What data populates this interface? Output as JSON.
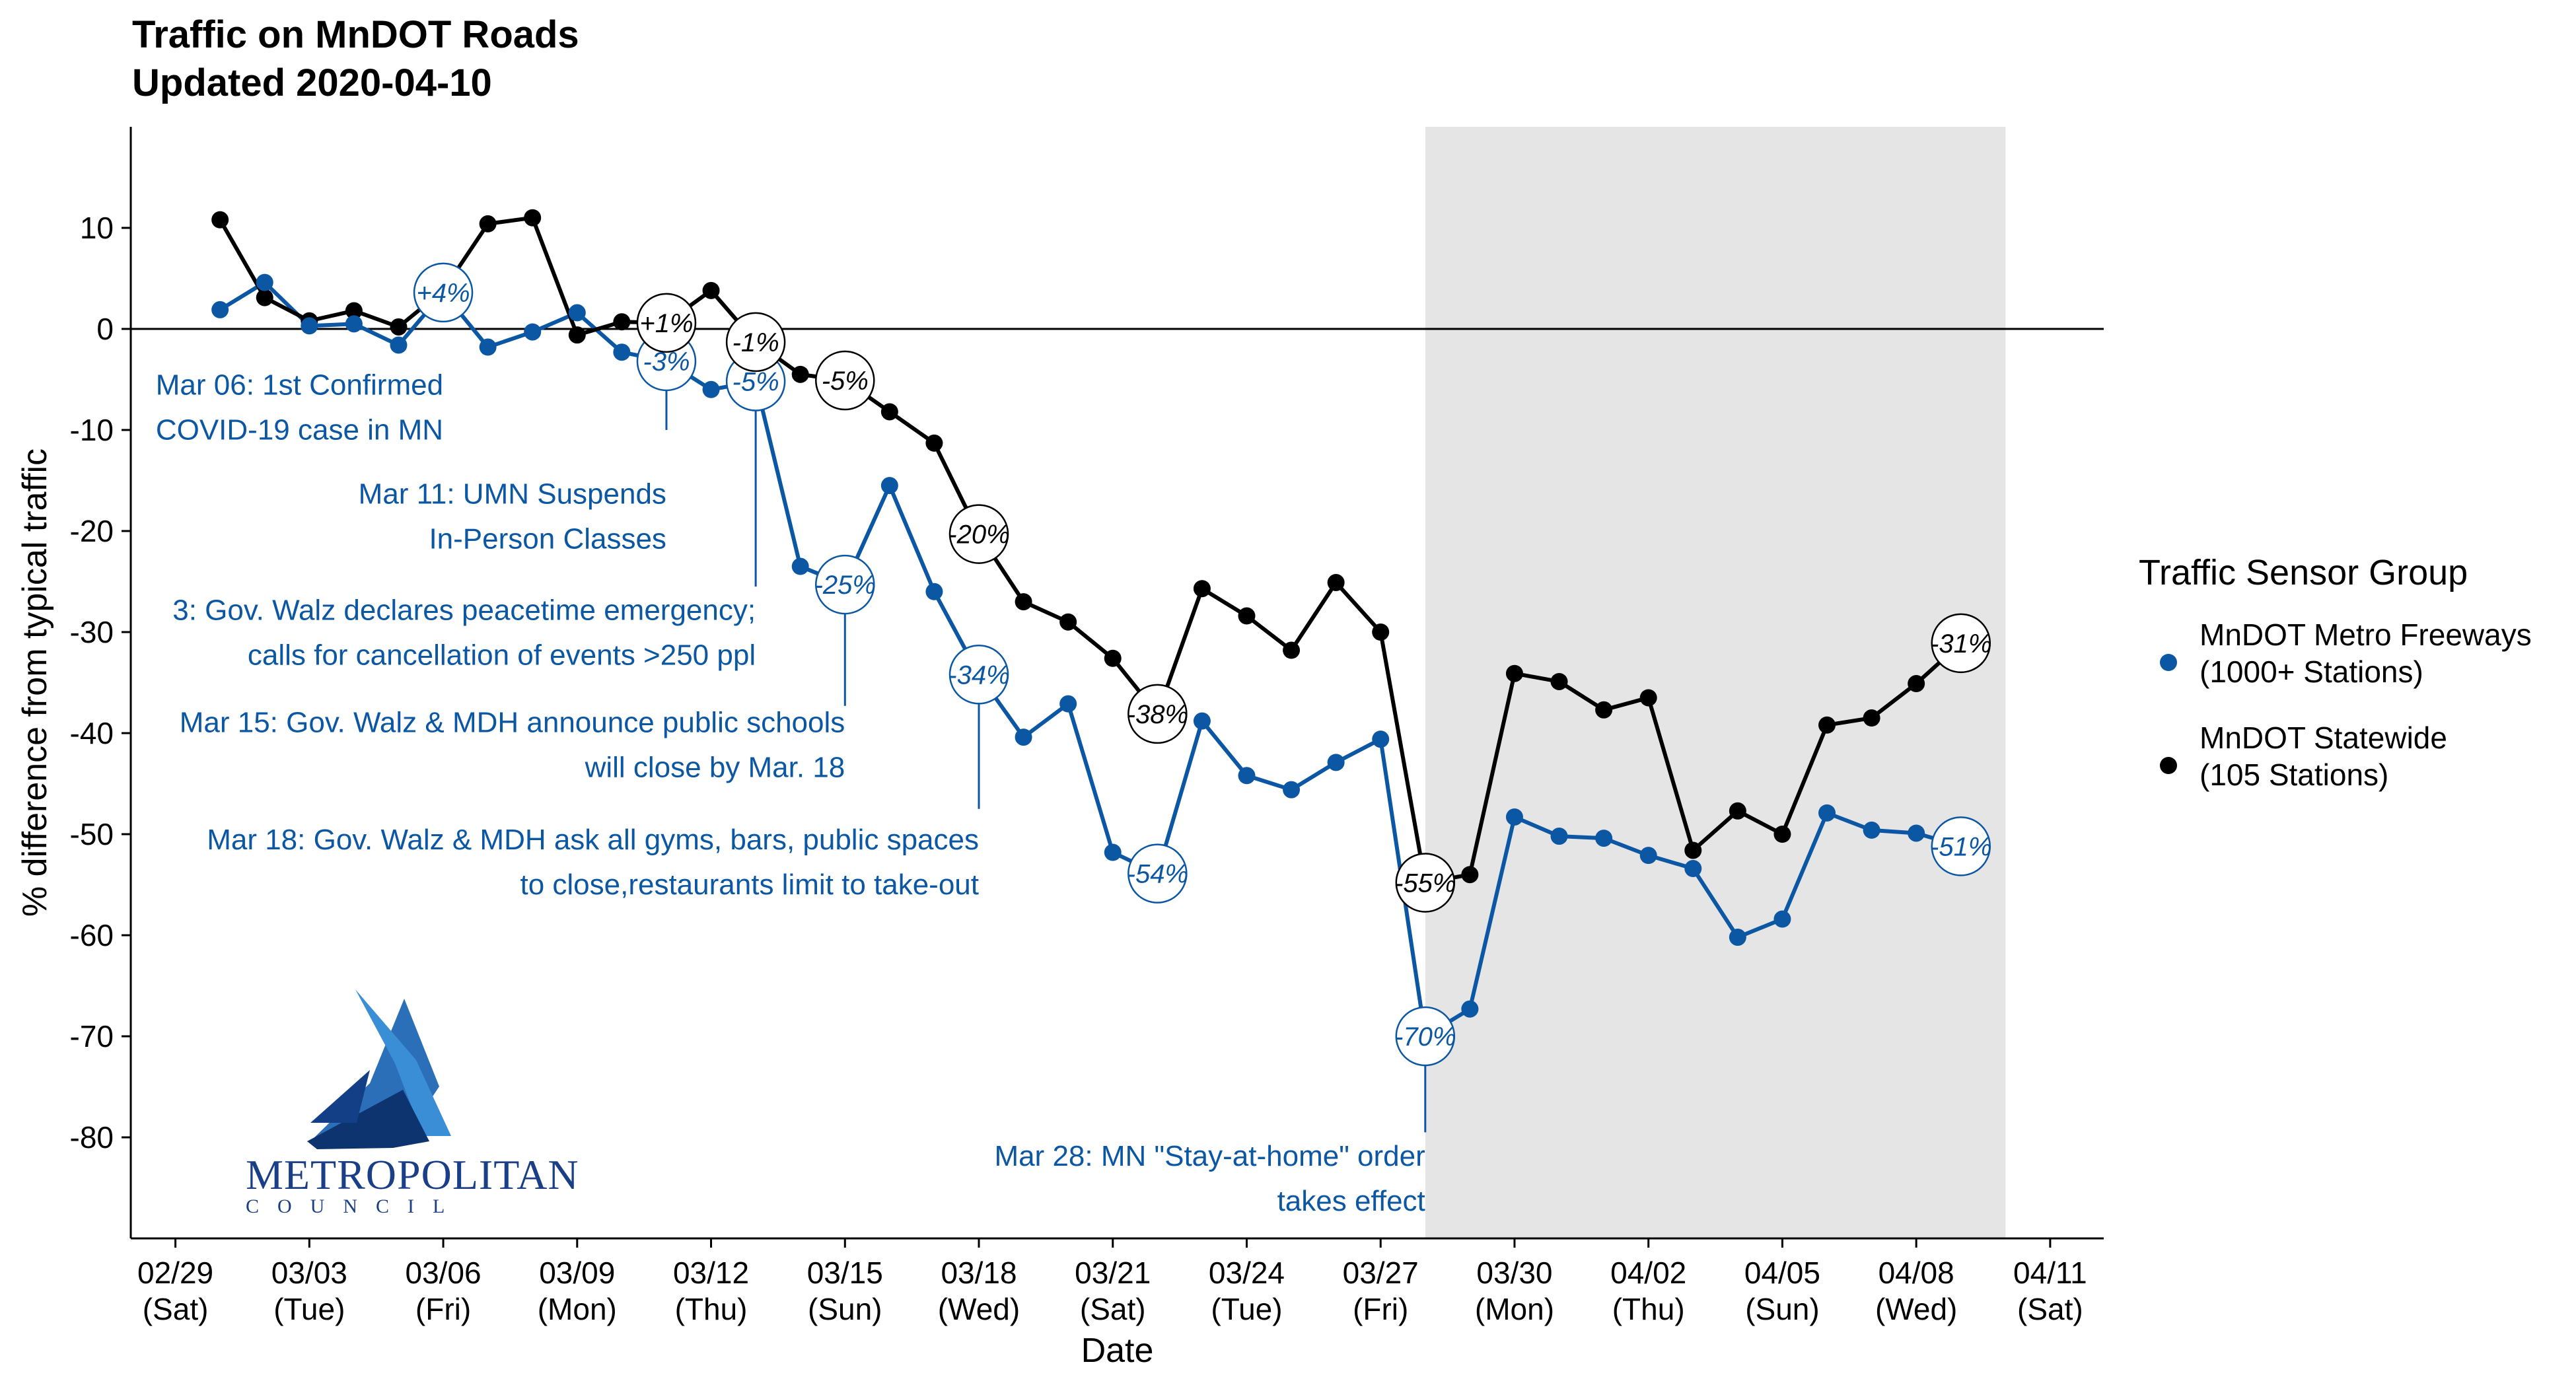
{
  "chart_data": {
    "type": "line",
    "title": [
      "Traffic on MnDOT Roads",
      "Updated 2020-04-10"
    ],
    "xlabel": "Date",
    "ylabel": "% difference from typical traffic",
    "x_start": "2020-03-01",
    "x_ticks": [
      {
        "line1": "02/29",
        "line2": "(Sat)",
        "day": -1
      },
      {
        "line1": "03/03",
        "line2": "(Tue)",
        "day": 2
      },
      {
        "line1": "03/06",
        "line2": "(Fri)",
        "day": 5
      },
      {
        "line1": "03/09",
        "line2": "(Mon)",
        "day": 8
      },
      {
        "line1": "03/12",
        "line2": "(Thu)",
        "day": 11
      },
      {
        "line1": "03/15",
        "line2": "(Sun)",
        "day": 14
      },
      {
        "line1": "03/18",
        "line2": "(Wed)",
        "day": 17
      },
      {
        "line1": "03/21",
        "line2": "(Sat)",
        "day": 20
      },
      {
        "line1": "03/24",
        "line2": "(Tue)",
        "day": 23
      },
      {
        "line1": "03/27",
        "line2": "(Fri)",
        "day": 26
      },
      {
        "line1": "03/30",
        "line2": "(Mon)",
        "day": 29
      },
      {
        "line1": "04/02",
        "line2": "(Thu)",
        "day": 32
      },
      {
        "line1": "04/05",
        "line2": "(Sun)",
        "day": 35
      },
      {
        "line1": "04/08",
        "line2": "(Wed)",
        "day": 38
      },
      {
        "line1": "04/11",
        "line2": "(Sat)",
        "day": 41
      }
    ],
    "xlim": [
      -2,
      42.2
    ],
    "ylim": [
      -90,
      20
    ],
    "y_ticks": [
      10,
      0,
      -10,
      -20,
      -30,
      -40,
      -50,
      -60,
      -70,
      -80
    ],
    "shaded_region": [
      27,
      40
    ],
    "series": [
      {
        "name": "MnDOT Metro Freeways",
        "name_line2": "(1000+ Stations)",
        "color": "#0b57a4",
        "values": [
          1.9,
          4.6,
          0.3,
          0.5,
          -1.6,
          3.6,
          -1.8,
          -0.3,
          1.6,
          -2.3,
          -3.2,
          -6.0,
          -5.2,
          -23.5,
          -25.3,
          -15.5,
          -26.0,
          -34.2,
          -40.4,
          -37.1,
          -51.8,
          -53.9,
          -38.8,
          -44.2,
          -45.6,
          -42.9,
          -40.6,
          -70.0,
          -67.3,
          -48.3,
          -50.2,
          -50.4,
          -52.1,
          -53.4,
          -60.2,
          -58.4,
          -47.9,
          -49.6,
          -49.9,
          -51.2
        ]
      },
      {
        "name": "MnDOT Statewide",
        "name_line2": "(105 Stations)",
        "color": "#000000",
        "values": [
          10.8,
          3.1,
          0.8,
          1.8,
          0.2,
          3.8,
          10.4,
          11.0,
          -0.6,
          0.7,
          0.6,
          3.8,
          -1.3,
          -4.5,
          -5.1,
          -8.2,
          -11.3,
          -20.3,
          -27.0,
          -29.0,
          -32.6,
          -38.1,
          -25.7,
          -28.4,
          -31.8,
          -25.1,
          -30.0,
          -54.8,
          -54.0,
          -34.1,
          -34.9,
          -37.7,
          -36.5,
          -51.6,
          -47.7,
          -50.0,
          -39.2,
          -38.5,
          -35.1,
          -31.1
        ]
      }
    ],
    "bubbles": [
      {
        "text": "+4%",
        "day": 5,
        "value": 3.6,
        "series": 0
      },
      {
        "text": "-3%",
        "day": 10,
        "value": -3.2,
        "series": 0
      },
      {
        "text": "-5%",
        "day": 12,
        "value": -5.2,
        "series": 0
      },
      {
        "text": "-25%",
        "day": 14,
        "value": -25.3,
        "series": 0
      },
      {
        "text": "-34%",
        "day": 17,
        "value": -34.2,
        "series": 0
      },
      {
        "text": "-54%",
        "day": 21,
        "value": -53.9,
        "series": 0
      },
      {
        "text": "-70%",
        "day": 27,
        "value": -70.0,
        "series": 0
      },
      {
        "text": "-51%",
        "day": 39,
        "value": -51.2,
        "series": 0
      },
      {
        "text": "+1%",
        "day": 10,
        "value": 0.6,
        "series": 1
      },
      {
        "text": "-1%",
        "day": 12,
        "value": -1.3,
        "series": 1
      },
      {
        "text": "-5%",
        "day": 14,
        "value": -5.1,
        "series": 1
      },
      {
        "text": "-20%",
        "day": 17,
        "value": -20.3,
        "series": 1
      },
      {
        "text": "-38%",
        "day": 21,
        "value": -38.1,
        "series": 1
      },
      {
        "text": "-55%",
        "day": 27,
        "value": -54.8,
        "series": 1
      },
      {
        "text": "-31%",
        "day": 39,
        "value": -31.1,
        "series": 1
      }
    ],
    "annotations": [
      {
        "day": 5,
        "value": 3.6,
        "lines": [
          "Mar 06: 1st Confirmed",
          "COVID-19 case in MN"
        ]
      },
      {
        "day": 10,
        "value": -3.2,
        "lines": [
          "Mar 11: UMN Suspends",
          "In-Person Classes"
        ]
      },
      {
        "day": 12,
        "value": -5.2,
        "lines": [
          "3: Gov. Walz declares peacetime emergency;",
          "calls for cancellation of events >250 ppl"
        ]
      },
      {
        "day": 14,
        "value": -25.3,
        "lines": [
          "Mar 15: Gov. Walz & MDH announce public schools",
          "will close by Mar. 18"
        ]
      },
      {
        "day": 17,
        "value": -34.2,
        "lines": [
          "Mar 18: Gov. Walz & MDH ask all gyms, bars, public spaces",
          "to close,restaurants limit to take-out"
        ]
      },
      {
        "day": 27,
        "value": -70.0,
        "lines": [
          "Mar 28: MN \"Stay-at-home\" order",
          "takes effect"
        ]
      }
    ],
    "legend": {
      "title": "Traffic Sensor Group",
      "position": "right"
    },
    "grid": false
  },
  "logo": {
    "line1": "METROPOLITAN",
    "line2": "COUNCIL"
  }
}
